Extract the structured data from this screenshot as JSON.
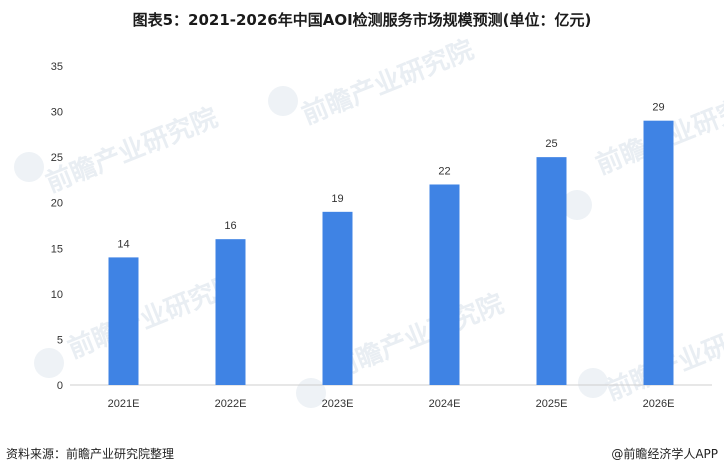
{
  "title": "图表5：2021-2026年中国AOI检测服务市场规模预测(单位：亿元)",
  "watermark": "前瞻产业研究院",
  "footer": {
    "source": "资料来源：前瞻产业研究院整理",
    "credit": "@前瞻经济学人APP"
  },
  "colors": {
    "bar": "#3f83e4",
    "axis": "#cfcfcf",
    "text": "#333333"
  },
  "chart_data": {
    "type": "bar",
    "title": "图表5：2021-2026年中国AOI检测服务市场规模预测(单位：亿元)",
    "categories": [
      "2021E",
      "2022E",
      "2023E",
      "2024E",
      "2025E",
      "2026E"
    ],
    "values": [
      14,
      16,
      19,
      22,
      25,
      29
    ],
    "data_labels": [
      "14",
      "16",
      "19",
      "22",
      "25",
      "29"
    ],
    "ylim": [
      0,
      35
    ],
    "yticks": [
      "0",
      "5",
      "10",
      "15",
      "20",
      "25",
      "30",
      "35"
    ],
    "xlabel": "",
    "ylabel": "",
    "grid": false,
    "legend": "none"
  }
}
